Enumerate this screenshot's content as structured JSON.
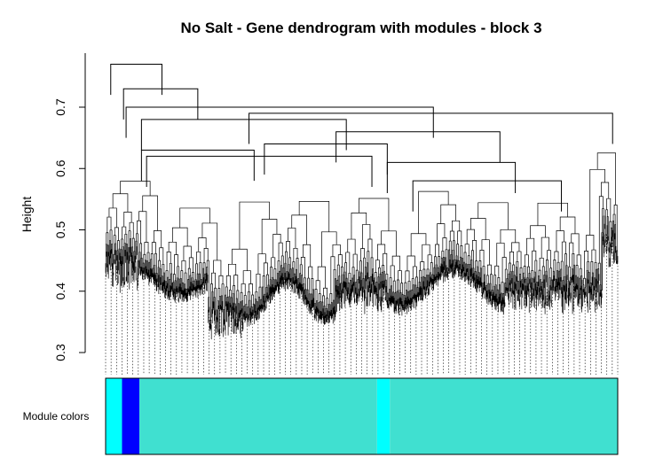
{
  "chart_data": {
    "type": "dendrogram",
    "title": "No Salt - Gene dendrogram with modules - block 3",
    "xlabel": "",
    "ylabel": "Height",
    "ylim": [
      0.3,
      0.78
    ],
    "y_ticks": [
      0.3,
      0.4,
      0.5,
      0.6,
      0.7
    ],
    "y_tick_labels": [
      "0.3",
      "0.4",
      "0.5",
      "0.6",
      "0.7"
    ],
    "grid": false,
    "colors": {
      "tree": "#000000",
      "leaf_guides": "#000000"
    },
    "top_merges": [
      {
        "height": 0.77,
        "left_x": 0.01,
        "right_x": 0.11
      },
      {
        "height": 0.73,
        "left_x": 0.035,
        "right_x": 0.18
      },
      {
        "height": 0.7,
        "left_x": 0.04,
        "right_x": 0.64
      },
      {
        "height": 0.69,
        "left_x": 0.28,
        "right_x": 0.99
      },
      {
        "height": 0.68,
        "left_x": 0.07,
        "right_x": 0.47
      },
      {
        "height": 0.66,
        "left_x": 0.45,
        "right_x": 0.77
      },
      {
        "height": 0.64,
        "left_x": 0.31,
        "right_x": 0.55
      },
      {
        "height": 0.63,
        "left_x": 0.07,
        "right_x": 0.29
      },
      {
        "height": 0.62,
        "left_x": 0.08,
        "right_x": 0.52
      },
      {
        "height": 0.61,
        "left_x": 0.55,
        "right_x": 0.8
      },
      {
        "height": 0.58,
        "left_x": 0.6,
        "right_x": 0.89
      }
    ],
    "module_colors": {
      "label": "Module colors",
      "segments": [
        {
          "from": 0.0,
          "to": 0.032,
          "color": "#00FFFF",
          "module": "cyan"
        },
        {
          "from": 0.032,
          "to": 0.066,
          "color": "#0000FF",
          "module": "blue"
        },
        {
          "from": 0.066,
          "to": 0.53,
          "color": "#40E0D0",
          "module": "turquoise"
        },
        {
          "from": 0.53,
          "to": 0.555,
          "color": "#00FFFF",
          "module": "cyan"
        },
        {
          "from": 0.555,
          "to": 1.0,
          "color": "#40E0D0",
          "module": "turquoise"
        }
      ]
    }
  }
}
